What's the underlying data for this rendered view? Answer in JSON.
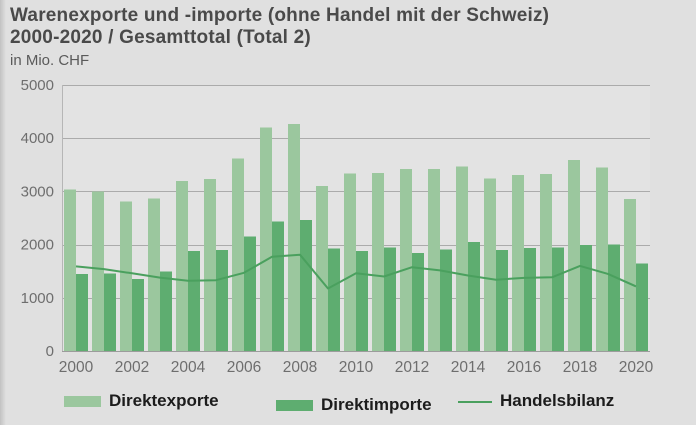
{
  "header": {
    "title_line1": "Warenexporte und -importe (ohne Handel mit der Schweiz)",
    "title_line2": "2000-2020 / Gesamttotal (Total 2)",
    "unit": "in Mio. CHF"
  },
  "colors": {
    "page_background": "#e0e0e0",
    "plot_background": "#e3e3e3",
    "gridline": "#ababab",
    "axis_line": "#9c9c9c",
    "plot_border": "#b6b6b6",
    "tick_label": "#6e6e6e",
    "title_text": "#4a4a4a",
    "export_bar": "#9bc79e",
    "import_bar": "#5ead70",
    "balance_line": "#4aa05e"
  },
  "chart_data": {
    "type": "bar",
    "title": "Warenexporte und -importe (ohne Handel mit der Schweiz) 2000-2020 / Gesamttotal (Total 2)",
    "ylabel": "in Mio. CHF",
    "xlabel": "",
    "ylim": [
      0,
      5000
    ],
    "yticks": [
      0,
      1000,
      2000,
      3000,
      4000,
      5000
    ],
    "grid": true,
    "legend_position": "bottom",
    "xtick_step": 2,
    "categories": [
      2000,
      2001,
      2002,
      2003,
      2004,
      2005,
      2006,
      2007,
      2008,
      2009,
      2010,
      2011,
      2012,
      2013,
      2014,
      2015,
      2016,
      2017,
      2018,
      2019,
      2020
    ],
    "series": [
      {
        "name": "Direktexporte",
        "type": "bar",
        "color": "#9bc79e",
        "values": [
          3040,
          3000,
          2810,
          2870,
          3200,
          3230,
          3620,
          4200,
          4270,
          3100,
          3340,
          3350,
          3420,
          3420,
          3470,
          3240,
          3310,
          3330,
          3590,
          3450,
          2860
        ]
      },
      {
        "name": "Direktimporte",
        "type": "bar",
        "color": "#5ead70",
        "values": [
          1450,
          1460,
          1350,
          1490,
          1880,
          1900,
          2150,
          2430,
          2460,
          1925,
          1880,
          1950,
          1845,
          1905,
          2050,
          1900,
          1935,
          1945,
          1990,
          2000,
          1645
        ]
      },
      {
        "name": "Handelsbilanz",
        "type": "line",
        "color": "#4aa05e",
        "values": [
          1590,
          1540,
          1460,
          1380,
          1320,
          1330,
          1470,
          1770,
          1810,
          1175,
          1460,
          1400,
          1575,
          1515,
          1420,
          1340,
          1375,
          1385,
          1600,
          1450,
          1215
        ]
      }
    ]
  }
}
